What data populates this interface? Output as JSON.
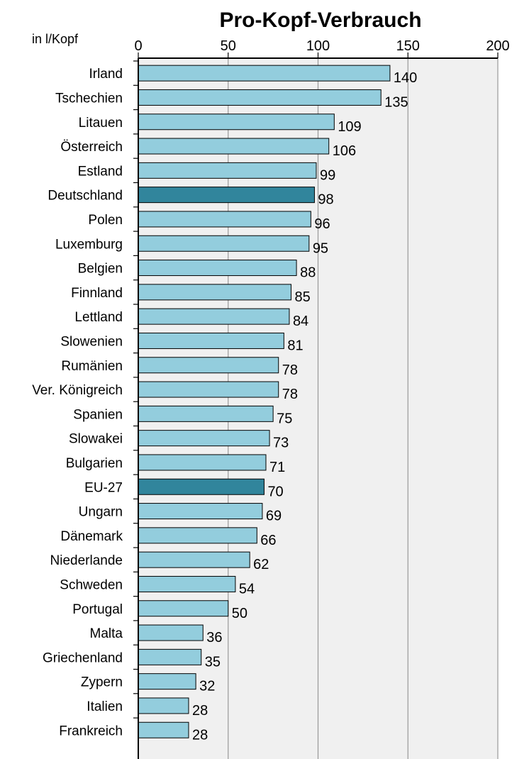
{
  "chart_data": {
    "type": "bar",
    "orientation": "horizontal",
    "title": "Pro-Kopf-Verbrauch",
    "unit_label": "in l/Kopf",
    "xlim": [
      0,
      200
    ],
    "ticks": [
      "0",
      "50",
      "100",
      "150",
      "200"
    ],
    "tick_values": [
      0,
      50,
      100,
      150,
      200
    ],
    "grid": "vertical",
    "categories": [
      "Irland",
      "Tschechien",
      "Litauen",
      "Österreich",
      "Estland",
      "Deutschland",
      "Polen",
      "Luxemburg",
      "Belgien",
      "Finnland",
      "Lettland",
      "Slowenien",
      "Rumänien",
      "Ver. Königreich",
      "Spanien",
      "Slowakei",
      "Bulgarien",
      "EU-27",
      "Ungarn",
      "Dänemark",
      "Niederlande",
      "Schweden",
      "Portugal",
      "Malta",
      "Griechenland",
      "Zypern",
      "Italien",
      "Frankreich"
    ],
    "values": [
      140,
      135,
      109,
      106,
      99,
      98,
      96,
      95,
      88,
      85,
      84,
      81,
      78,
      78,
      75,
      73,
      71,
      70,
      69,
      66,
      62,
      54,
      50,
      36,
      35,
      32,
      28,
      28
    ],
    "highlighted": [
      "Deutschland",
      "EU-27"
    ],
    "colors": {
      "bar": "#93cddd",
      "highlight": "#31859c",
      "plot_background": "#f0f0f0",
      "grid": "#999999",
      "bar_border": "#000000"
    }
  }
}
